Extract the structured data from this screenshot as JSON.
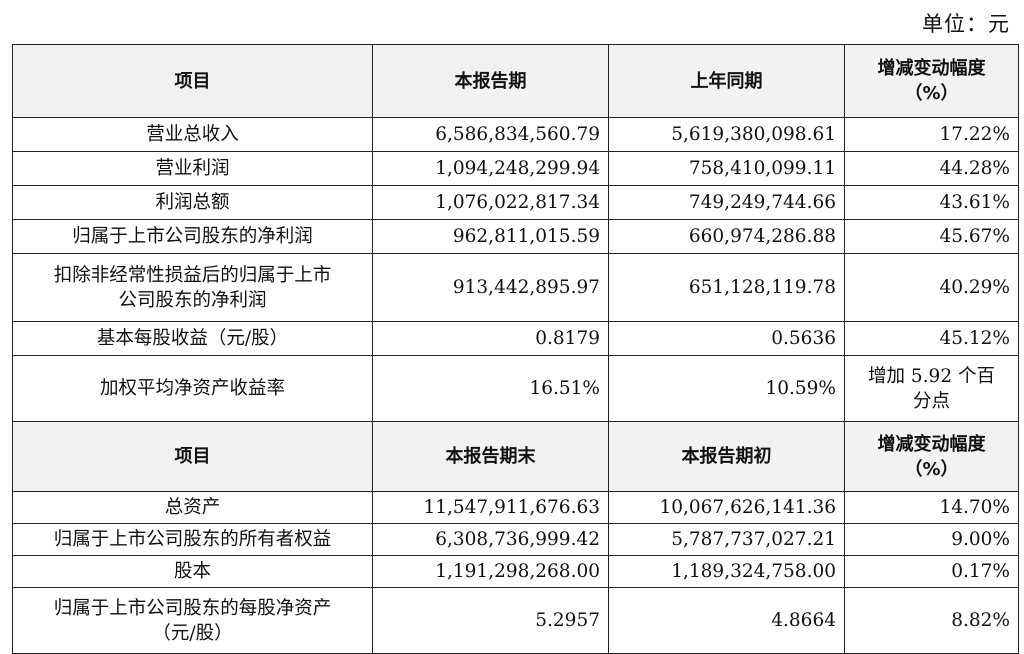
{
  "unit_label": "单位：元",
  "section1": {
    "headers": [
      "项目",
      "本报告期",
      "上年同期",
      "增减变动幅度",
      "（%）"
    ],
    "rows": [
      {
        "item": "营业总收入",
        "current": "6,586,834,560.79",
        "prior": "5,619,380,098.61",
        "change": "17.22%"
      },
      {
        "item": "营业利润",
        "current": "1,094,248,299.94",
        "prior": "758,410,099.11",
        "change": "44.28%"
      },
      {
        "item": "利润总额",
        "current": "1,076,022,817.34",
        "prior": "749,249,744.66",
        "change": "43.61%"
      },
      {
        "item": "归属于上市公司股东的净利润",
        "current": "962,811,015.59",
        "prior": "660,974,286.88",
        "change": "45.67%"
      },
      {
        "item_line1": "扣除非经常性损益后的归属于上市",
        "item_line2": "公司股东的净利润",
        "current": "913,442,895.97",
        "prior": "651,128,119.78",
        "change": "40.29%"
      },
      {
        "item": "基本每股收益（元/股）",
        "current": "0.8179",
        "prior": "0.5636",
        "change": "45.12%"
      },
      {
        "item": "加权平均净资产收益率",
        "current": "16.51%",
        "prior": "10.59%",
        "change_line1": "增加 5.92 个百",
        "change_line2": "分点"
      }
    ]
  },
  "section2": {
    "headers": [
      "项目",
      "本报告期末",
      "本报告期初",
      "增减变动幅度",
      "（%）"
    ],
    "rows": [
      {
        "item": "总资产",
        "current": "11,547,911,676.63",
        "prior": "10,067,626,141.36",
        "change": "14.70%"
      },
      {
        "item": "归属于上市公司股东的所有者权益",
        "current": "6,308,736,999.42",
        "prior": "5,787,737,027.21",
        "change": "9.00%"
      },
      {
        "item": "股本",
        "current": "1,191,298,268.00",
        "prior": "1,189,324,758.00",
        "change": "0.17%"
      },
      {
        "item_line1": "归属于上市公司股东的每股净资产",
        "item_line2": "（元/股）",
        "current": "5.2957",
        "prior": "4.8664",
        "change": "8.82%"
      }
    ]
  }
}
